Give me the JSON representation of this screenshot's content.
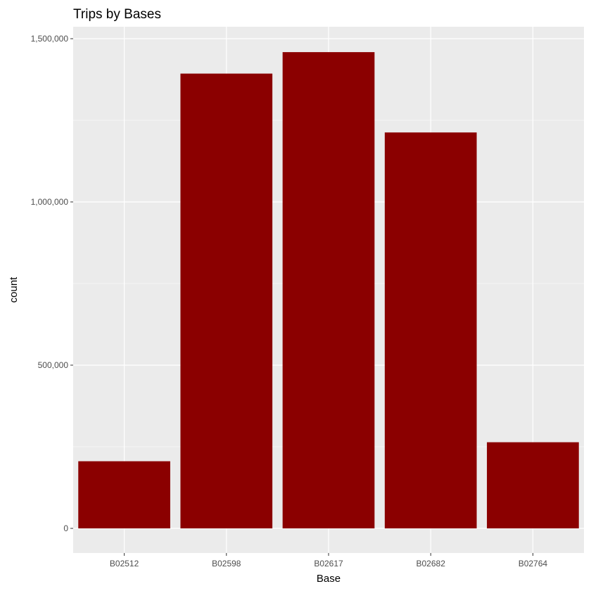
{
  "chart_data": {
    "type": "bar",
    "title": "Trips by Bases",
    "xlabel": "Base",
    "ylabel": "count",
    "categories": [
      "B02512",
      "B02598",
      "B02617",
      "B02682",
      "B02764"
    ],
    "values": [
      205673,
      1393113,
      1458853,
      1212789,
      263880
    ],
    "ylim": [
      0,
      1500000
    ],
    "yticks": [
      0,
      500000,
      1000000,
      1500000
    ],
    "ytick_labels": [
      "0",
      "500,000",
      "1,000,000",
      "1,500,000"
    ],
    "y_minor_ticks": [
      250000,
      750000,
      1250000
    ],
    "grid": true,
    "bar_color": "#8B0000",
    "panel_background": "#EBEBEB",
    "grid_color": "#FFFFFF"
  }
}
